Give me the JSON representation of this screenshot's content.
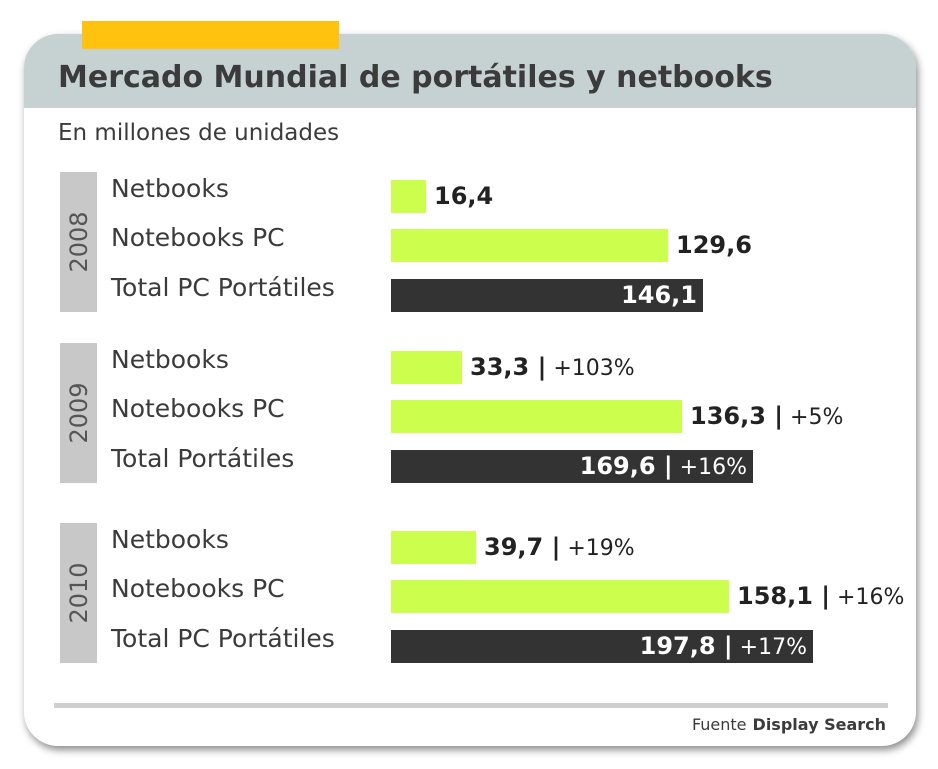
{
  "chart_data": {
    "type": "bar",
    "orientation": "horizontal",
    "title": "Mercado Mundial de portátiles y netbooks",
    "subtitle": "En millones de unidades",
    "xlim": [
      0,
      200
    ],
    "grid": false,
    "colors": {
      "segment": "#ccff4d",
      "total": "#333333",
      "year_tab": "#c8c8c8",
      "header": "#c6d2d2",
      "accent": "#ffc20e"
    },
    "groups": [
      {
        "year": "2008",
        "rows": [
          {
            "label": "Netbooks",
            "value": 16.4,
            "value_text": "16,4",
            "change_text": "",
            "kind": "segment"
          },
          {
            "label": "Notebooks PC",
            "value": 129.6,
            "value_text": "129,6",
            "change_text": "",
            "kind": "segment"
          },
          {
            "label": "Total PC Portátiles",
            "value": 146.1,
            "value_text": "146,1",
            "change_text": "",
            "kind": "total"
          }
        ]
      },
      {
        "year": "2009",
        "rows": [
          {
            "label": "Netbooks",
            "value": 33.3,
            "value_text": "33,3 |",
            "change_text": "+103%",
            "kind": "segment"
          },
          {
            "label": "Notebooks PC",
            "value": 136.3,
            "value_text": "136,3 |",
            "change_text": "+5%",
            "kind": "segment"
          },
          {
            "label": "Total Portátiles",
            "value": 169.6,
            "value_text": "169,6 |",
            "change_text": "+16%",
            "kind": "total"
          }
        ]
      },
      {
        "year": "2010",
        "rows": [
          {
            "label": "Netbooks",
            "value": 39.7,
            "value_text": "39,7 |",
            "change_text": "+19%",
            "kind": "segment"
          },
          {
            "label": "Notebooks PC",
            "value": 158.1,
            "value_text": "158,1 |",
            "change_text": "+16%",
            "kind": "segment"
          },
          {
            "label": "Total PC Portátiles",
            "value": 197.8,
            "value_text": "197,8 |",
            "change_text": "+17%",
            "kind": "total"
          }
        ]
      }
    ]
  },
  "footer": {
    "source_prefix": "Fuente",
    "source_name": "Display Search"
  }
}
